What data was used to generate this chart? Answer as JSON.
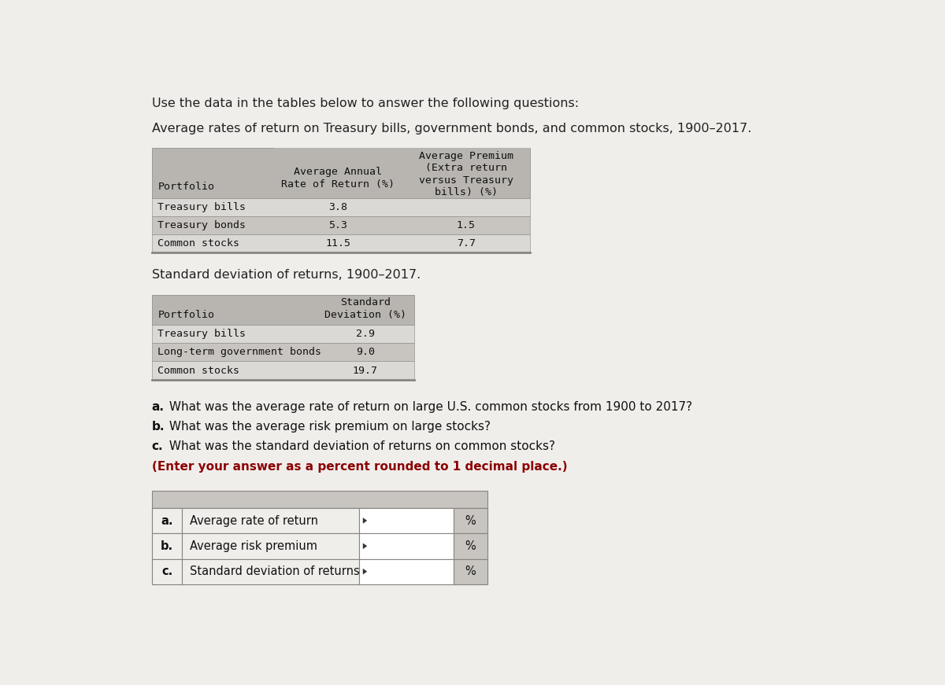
{
  "title_line1": "Use the data in the tables below to answer the following questions:",
  "title_line2": "Average rates of return on Treasury bills, government bonds, and common stocks, 1900–2017.",
  "table1_rows": [
    [
      "Treasury bills",
      "3.8",
      ""
    ],
    [
      "Treasury bonds",
      "5.3",
      "1.5"
    ],
    [
      "Common stocks",
      "11.5",
      "7.7"
    ]
  ],
  "table2_title": "Standard deviation of returns, 1900–2017.",
  "table2_rows": [
    [
      "Treasury bills",
      "2.9"
    ],
    [
      "Long-term government bonds",
      "9.0"
    ],
    [
      "Common stocks",
      "19.7"
    ]
  ],
  "questions_bold": [
    "a.",
    "b.",
    "c."
  ],
  "questions_text": [
    " What was the average rate of return on large U.S. common stocks from 1900 to 2017?",
    " What was the average risk premium on large stocks?",
    " What was the standard deviation of returns on common stocks?"
  ],
  "question_italic": "(Enter your answer as a percent rounded to 1 decimal place.)",
  "answer_rows": [
    [
      "a.",
      "Average rate of return"
    ],
    [
      "b.",
      "Average risk premium"
    ],
    [
      "c.",
      "Standard deviation of returns"
    ]
  ],
  "page_bg": "#f0eeeb",
  "table_bg": "#dbd9d6",
  "header_bg": "#b8b5b0",
  "row_odd_bg": "#dbd9d6",
  "row_even_bg": "#c8c5c0",
  "ans_header_bg": "#c8c5c0",
  "ans_row_bg": "#f0eeeb",
  "ans_input_bg": "#ffffff",
  "ans_pct_bg": "#c8c5c0",
  "border_color": "#888580"
}
